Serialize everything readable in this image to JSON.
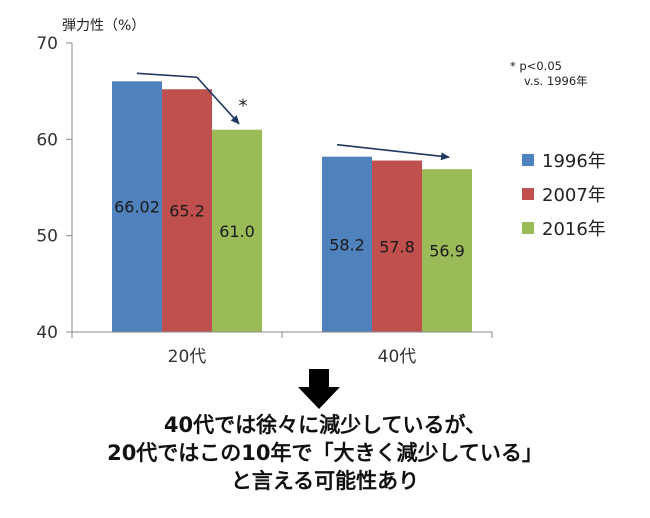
{
  "chart_data": {
    "type": "bar",
    "ylabel": "弾力性（%）",
    "ylim": [
      40,
      70
    ],
    "yticks": [
      40,
      50,
      60,
      70
    ],
    "grid": false,
    "legend_position": "right",
    "categories": [
      "20代",
      "40代"
    ],
    "series": [
      {
        "name": "1996年",
        "color": "#4f81bd",
        "values": [
          66.02,
          58.2
        ],
        "labels": [
          "66.02",
          "58.2"
        ]
      },
      {
        "name": "2007年",
        "color": "#c0504d",
        "values": [
          65.2,
          57.8
        ],
        "labels": [
          "65.2",
          "57.8"
        ]
      },
      {
        "name": "2016年",
        "color": "#9bbb59",
        "values": [
          61.0,
          56.9
        ],
        "labels": [
          "61.0",
          "56.9"
        ]
      }
    ],
    "significance_note": [
      "*  p<0.05",
      "v.s. 1996年"
    ],
    "significance_marker": "*",
    "trend_arrow_color": "#1f3864"
  },
  "conclusion": {
    "line1": "40代では徐々に減少しているが、",
    "line2": "20代ではこの10年で「大きく減少している」",
    "line3": "と言える可能性あり"
  },
  "icons": {
    "down_arrow": "down-arrow-icon"
  }
}
